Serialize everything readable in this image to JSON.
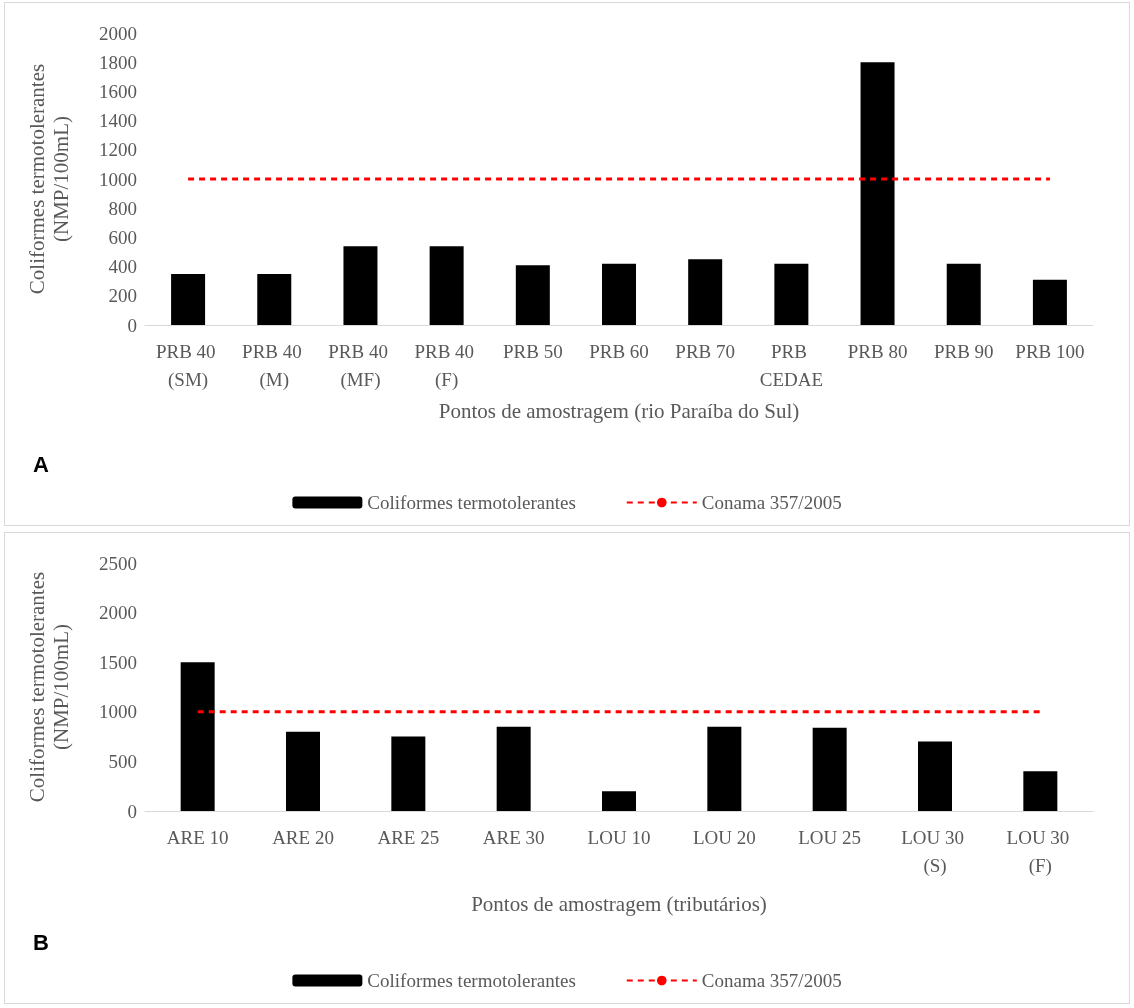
{
  "chart_data": [
    {
      "type": "bar",
      "xlabel": "Pontos de amostragem (rio Paraíba do Sul)",
      "ylabel": "Coliformes termotolerantes (NMP/100mL)",
      "annotations": [
        "A"
      ],
      "legend": "bottom",
      "grid": false,
      "marker": "none",
      "categories": [
        "PRB 40 (SM)",
        "PRB 40 (M)",
        "PRB 40 (MF)",
        "PRB 40 (F)",
        "PRB 50",
        "PRB 60",
        "PRB 70",
        "PRB CEDAE",
        "PRB 80",
        "PRB 90",
        "PRB 100"
      ],
      "ylim": [
        0,
        2000
      ],
      "yticks": [
        0,
        200,
        400,
        600,
        800,
        1000,
        1200,
        1400,
        1600,
        1800,
        2000
      ],
      "series": [
        {
          "name": "Coliformes termotolerantes",
          "color": "#000000",
          "values": [
            350,
            350,
            540,
            540,
            410,
            420,
            450,
            420,
            1800,
            420,
            310
          ]
        },
        {
          "name": "Conama 357/2005",
          "type": "line",
          "color": "#ff0000",
          "line_style": "dashed",
          "values": [
            1000,
            1000,
            1000,
            1000,
            1000,
            1000,
            1000,
            1000,
            1000,
            1000,
            1000
          ]
        }
      ]
    },
    {
      "type": "bar",
      "xlabel": "Pontos de amostragem (tributários)",
      "ylabel": "Coliformes termotolerantes (NMP/100mL)",
      "annotations": [
        "B"
      ],
      "legend": "bottom",
      "grid": false,
      "marker": "none",
      "categories": [
        "ARE 10",
        "ARE 20",
        "ARE 25",
        "ARE 30",
        "LOU 10",
        "LOU 20",
        "LOU 25",
        "LOU 30 (S)",
        "LOU 30 (F)"
      ],
      "ylim": [
        0,
        2500
      ],
      "yticks": [
        0,
        500,
        1000,
        1500,
        2000,
        2500
      ],
      "series": [
        {
          "name": "Coliformes termotolerantes",
          "color": "#000000",
          "values": [
            1500,
            800,
            750,
            850,
            200,
            850,
            840,
            700,
            400
          ]
        },
        {
          "name": "Conama 357/2005",
          "type": "line",
          "color": "#ff0000",
          "line_style": "dashed",
          "values": [
            1000,
            1000,
            1000,
            1000,
            1000,
            1000,
            1000,
            1000,
            1000
          ]
        }
      ]
    }
  ]
}
